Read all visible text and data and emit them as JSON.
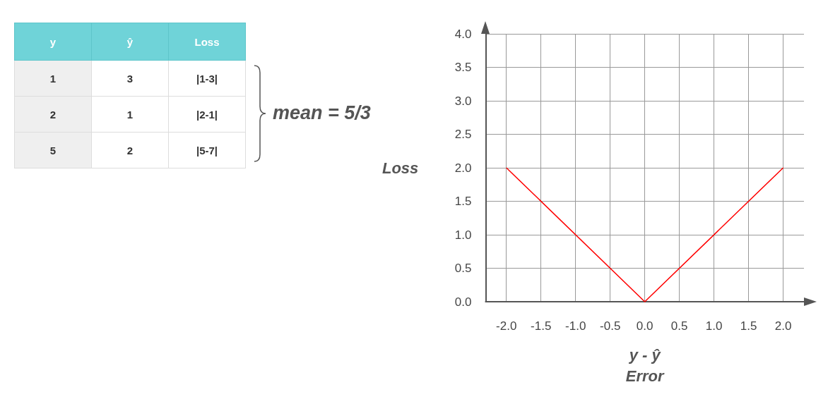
{
  "chart_data": [
    {
      "type": "other",
      "categories": [
        "y",
        "ŷ",
        "Loss"
      ],
      "cell_labels": [
        [
          "1",
          "3",
          "|1-3|"
        ],
        [
          "2",
          "1",
          "|2-1|"
        ],
        [
          "5",
          "2",
          "|5-7|"
        ]
      ],
      "annotations": [
        "mean = 5/3"
      ]
    },
    {
      "type": "line",
      "xlabel": "y - ŷ\nError",
      "ylabel": "Loss",
      "x": [
        -2.0,
        0.0,
        2.0
      ],
      "series": [
        {
          "color": "#ff0000",
          "values": [
            2.0,
            0.0,
            2.0
          ]
        }
      ],
      "xlim": [
        -2.3,
        2.3
      ],
      "ylim": [
        0,
        4
      ],
      "xticks": [
        {
          "value": -2,
          "label": "-2.0"
        },
        {
          "value": -1.5,
          "label": "-1.5"
        },
        {
          "value": -1,
          "label": "-1.0"
        },
        {
          "value": -0.5,
          "label": "-0.5"
        },
        {
          "value": 0,
          "label": "0.0"
        },
        {
          "value": 0.5,
          "label": "0.5"
        },
        {
          "value": 1,
          "label": "1.0"
        },
        {
          "value": 1.5,
          "label": "1.5"
        },
        {
          "value": 2,
          "label": "2.0"
        }
      ],
      "yticks": [
        {
          "value": 0,
          "label": "0.0"
        },
        {
          "value": 0.5,
          "label": "0.5"
        },
        {
          "value": 1,
          "label": "1.0"
        },
        {
          "value": 1.5,
          "label": "1.5"
        },
        {
          "value": 2,
          "label": "2.0"
        },
        {
          "value": 2.5,
          "label": "2.5"
        },
        {
          "value": 3,
          "label": "3.0"
        },
        {
          "value": 3.5,
          "label": "3.5"
        },
        {
          "value": 4,
          "label": "4.0"
        }
      ],
      "grid": true,
      "marker": "none",
      "line_style": "solid"
    }
  ]
}
